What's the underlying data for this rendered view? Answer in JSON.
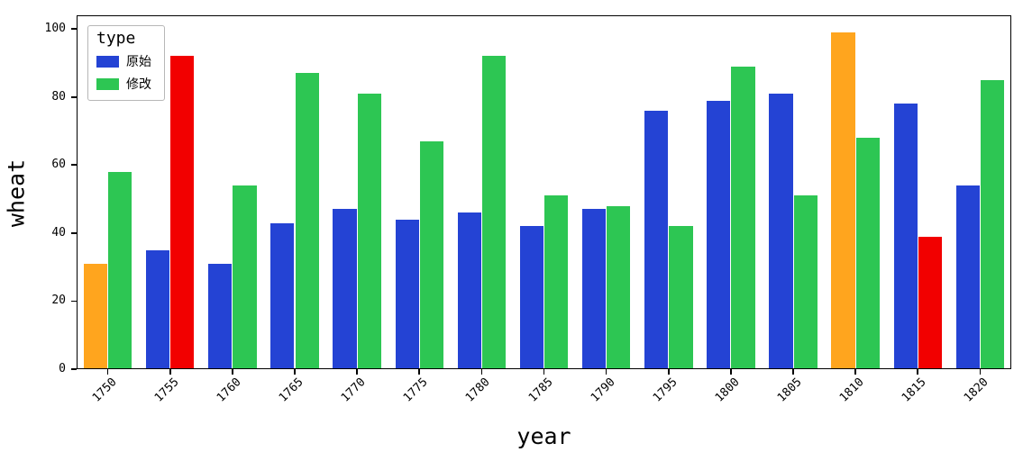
{
  "chart_data": {
    "type": "bar",
    "title": "",
    "xlabel": "year",
    "ylabel": "wheat",
    "ylim": [
      0,
      104
    ],
    "yticks": [
      0,
      20,
      40,
      60,
      80,
      100
    ],
    "grid": false,
    "legend_position": "upper-left",
    "categories": [
      "1750",
      "1755",
      "1760",
      "1765",
      "1770",
      "1775",
      "1780",
      "1785",
      "1790",
      "1795",
      "1800",
      "1805",
      "1810",
      "1815",
      "1820"
    ],
    "legend": {
      "title": "type",
      "entries": [
        {
          "label": "原始",
          "color": "#2443d4"
        },
        {
          "label": "修改",
          "color": "#2dc653"
        }
      ]
    },
    "series": [
      {
        "name": "原始",
        "default_color": "#2443d4",
        "values": [
          31,
          35,
          31,
          43,
          47,
          44,
          46,
          42,
          47,
          76,
          79,
          81,
          99,
          78,
          54
        ],
        "bar_colors": [
          "#ffa51e",
          null,
          null,
          null,
          null,
          null,
          null,
          null,
          null,
          null,
          null,
          null,
          "#ffa51e",
          null,
          null
        ]
      },
      {
        "name": "修改",
        "default_color": "#2dc653",
        "values": [
          58,
          92,
          54,
          87,
          81,
          67,
          92,
          51,
          48,
          42,
          89,
          51,
          68,
          39,
          85
        ],
        "bar_colors": [
          null,
          "#f20000",
          null,
          null,
          null,
          null,
          null,
          null,
          null,
          null,
          null,
          null,
          null,
          "#f20000",
          null
        ]
      }
    ],
    "highlight_colors": {
      "orange": "#ffa51e",
      "red": "#f20000"
    }
  }
}
